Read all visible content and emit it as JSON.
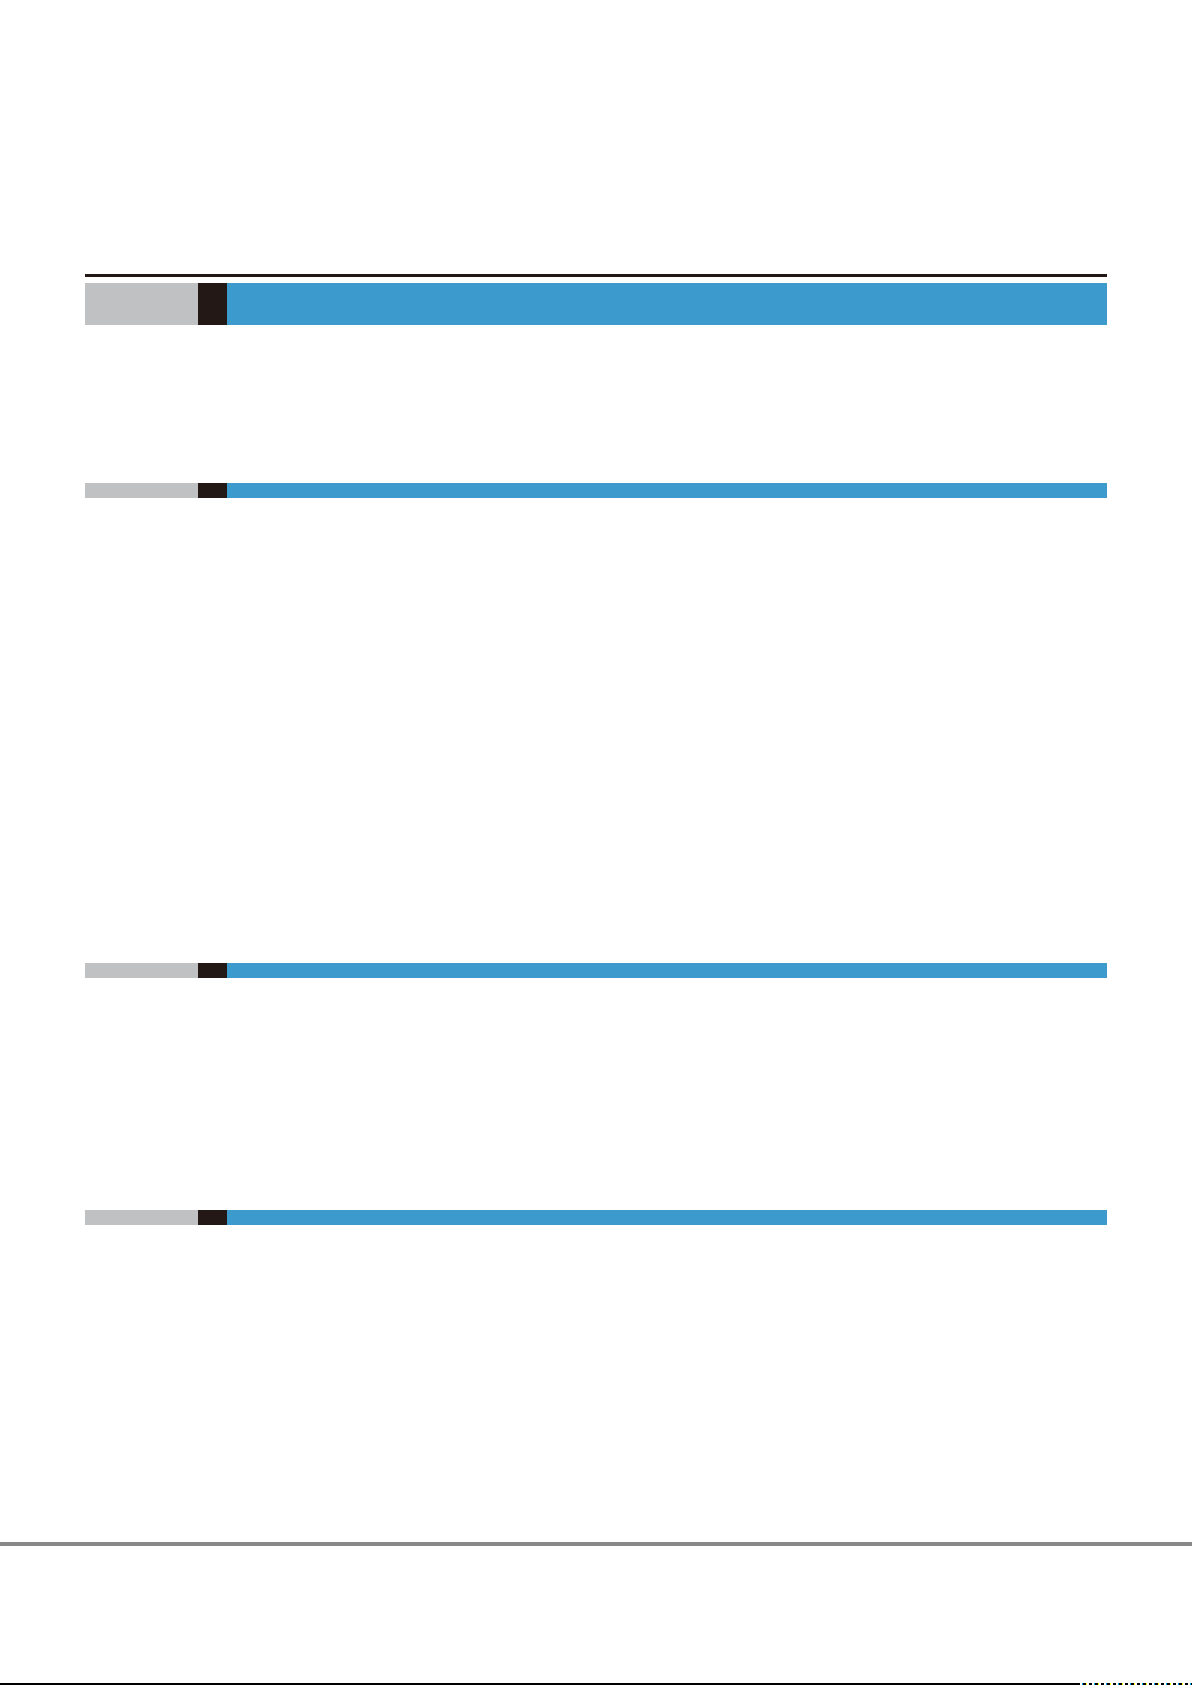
{
  "colors": {
    "rule": "#231815",
    "gray": "#c0c1c3",
    "dark": "#231815",
    "blue": "#3d9acc",
    "footer_rule": "#898989",
    "bottom_rule": "#000000"
  },
  "sections": [
    {
      "style": "header"
    },
    {
      "style": "divider"
    },
    {
      "style": "divider"
    },
    {
      "style": "divider"
    }
  ]
}
